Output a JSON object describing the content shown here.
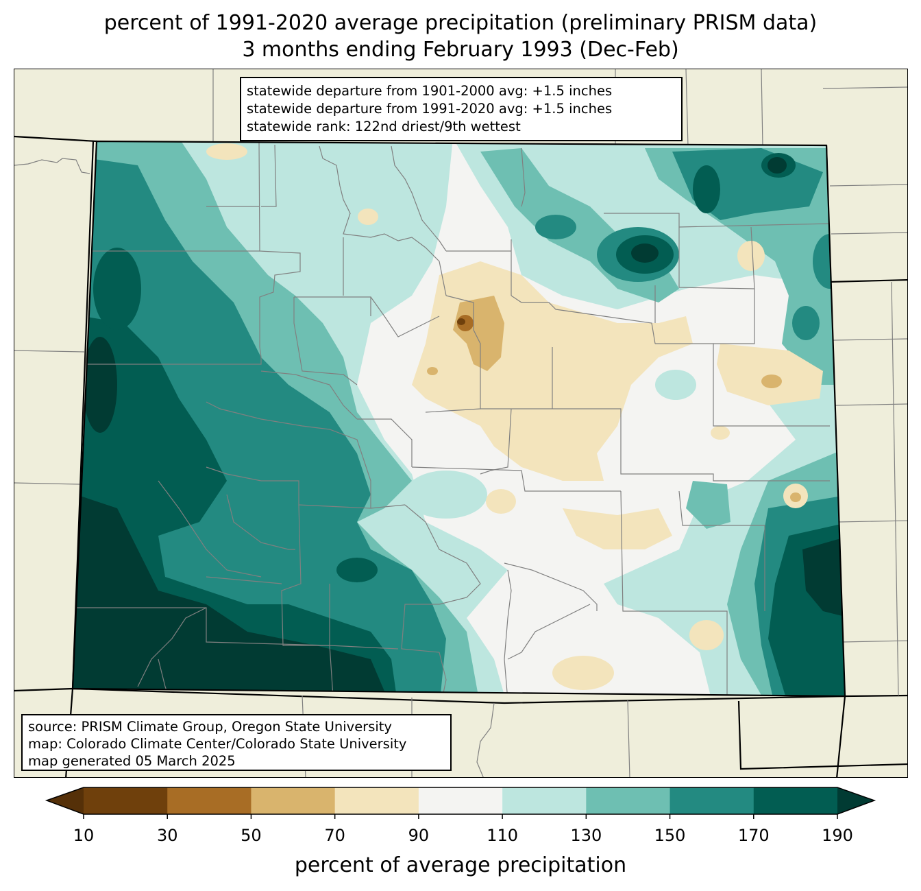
{
  "title": {
    "line1": "percent of 1991-2020 average precipitation (preliminary PRISM data)",
    "line2": "3 months ending February 1993 (Dec-Feb)"
  },
  "stats": {
    "line1": "statewide departure from 1901-2000 avg: +1.5 inches",
    "line2": "statewide departure from 1991-2020 avg: +1.5 inches",
    "line3": "statewide rank: 122nd driest/9th wettest"
  },
  "credits": {
    "line1": "source: PRISM Climate Group, Oregon State University",
    "line2": "map: Colorado Climate Center/Colorado State University",
    "line3": "map generated 05 March 2025"
  },
  "colorbar": {
    "label": "percent of average precipitation",
    "ticks": [
      "10",
      "30",
      "50",
      "70",
      "90",
      "110",
      "130",
      "150",
      "170",
      "190"
    ],
    "bins": [
      {
        "from": 10,
        "to": 30,
        "color": "#6f400c"
      },
      {
        "from": 30,
        "to": 50,
        "color": "#a86d25"
      },
      {
        "from": 50,
        "to": 70,
        "color": "#d9b46d"
      },
      {
        "from": 70,
        "to": 90,
        "color": "#f3e4bc"
      },
      {
        "from": 90,
        "to": 110,
        "color": "#f4f4f2"
      },
      {
        "from": 110,
        "to": 130,
        "color": "#bde6df"
      },
      {
        "from": 130,
        "to": 150,
        "color": "#6ebfb2"
      },
      {
        "from": 150,
        "to": 170,
        "color": "#238a81"
      },
      {
        "from": 170,
        "to": 190,
        "color": "#025d52"
      }
    ],
    "under_color": "#553008",
    "over_color": "#013b33"
  },
  "map_colors": {
    "background": "#efeedb",
    "state_border": "#000000",
    "county_lines": "#808080"
  }
}
